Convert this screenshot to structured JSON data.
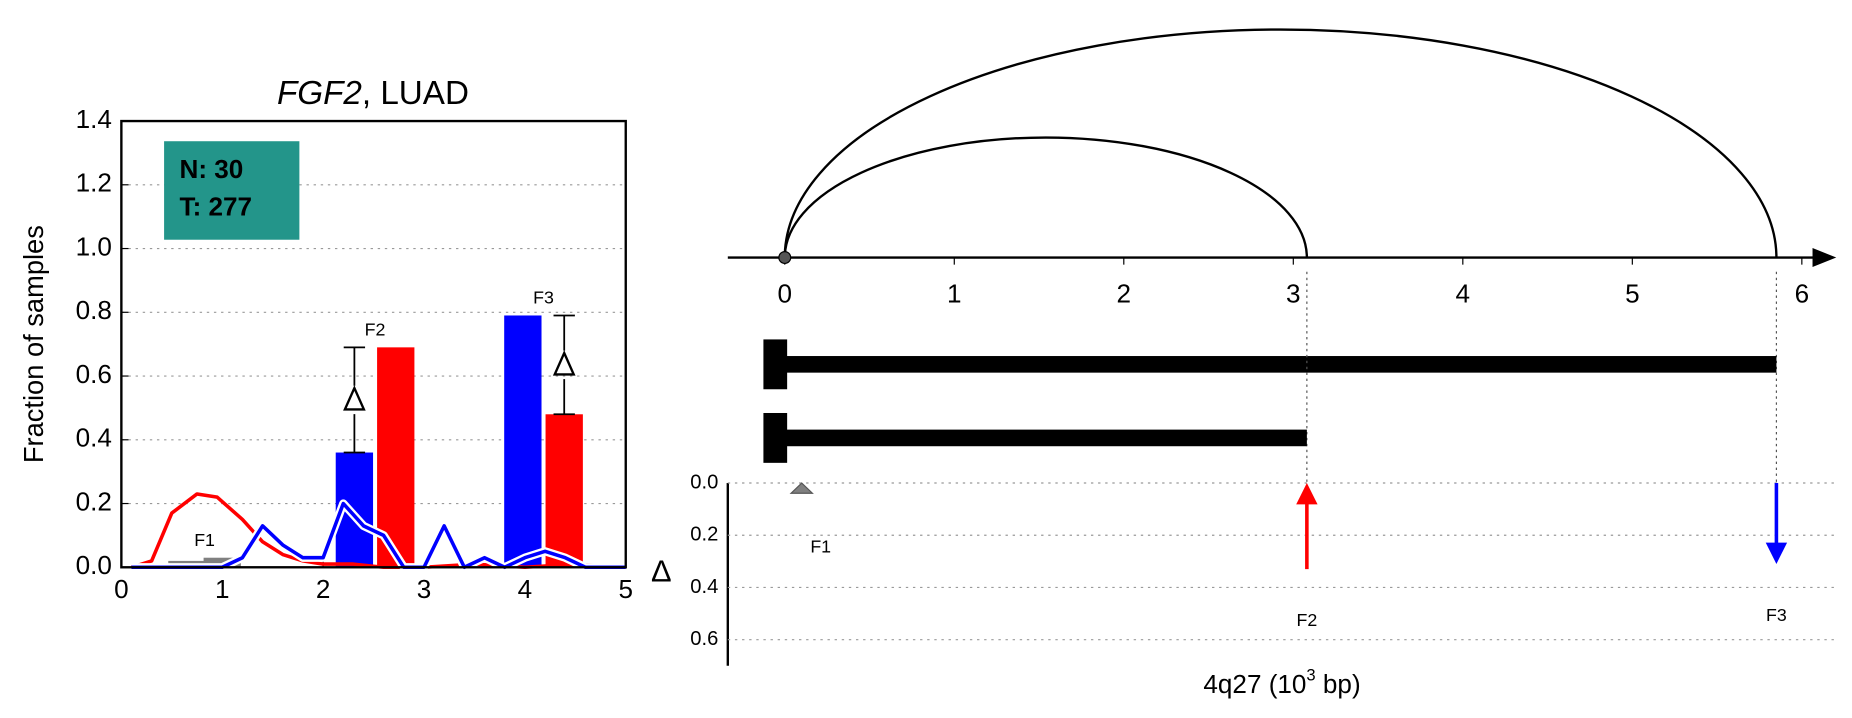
{
  "chart_data": [
    {
      "type": "bar",
      "title_italic": "FGF2",
      "title_rest": ", LUAD",
      "ylabel": "Fraction of samples",
      "xlim": [
        0,
        5
      ],
      "xticks": [
        0,
        1,
        2,
        3,
        4,
        5
      ],
      "ylim": [
        0,
        1.4
      ],
      "yticks": [
        {
          "value": 0,
          "label": "0.0"
        },
        {
          "value": 0.2,
          "label": "0.2"
        },
        {
          "value": 0.4,
          "label": "0.4"
        },
        {
          "value": 0.6,
          "label": "0.6"
        },
        {
          "value": 0.8,
          "label": "0.8"
        },
        {
          "value": 1.0,
          "label": "1.0"
        },
        {
          "value": 1.2,
          "label": "1.2"
        },
        {
          "value": 1.4,
          "label": "1.4"
        }
      ],
      "grid": true,
      "legend": [
        "N: 30",
        "T: 277"
      ],
      "legend_color": "#23958a",
      "bar_width": 0.37,
      "groups": [
        {
          "label": "F1",
          "x": [
            0.65,
            1.0
          ],
          "values": [
            0.02,
            0.03
          ],
          "colors": [
            "#808080",
            "#808080"
          ],
          "delta": false
        },
        {
          "label": "F2",
          "x": [
            2.31,
            2.72
          ],
          "values": [
            0.36,
            0.69
          ],
          "colors": [
            "#0000ff",
            "#ff0000"
          ],
          "delta": true
        },
        {
          "label": "F3",
          "x": [
            3.98,
            4.39
          ],
          "values": [
            0.79,
            0.48
          ],
          "colors": [
            "#0000ff",
            "#ff0000"
          ],
          "delta": true
        }
      ],
      "lines": [
        {
          "color": "#ff0000",
          "x": [
            0.1,
            0.3,
            0.5,
            0.75,
            0.95,
            1.2,
            1.4,
            1.6,
            1.8,
            2.0,
            2.3,
            2.6,
            3.0,
            3.5,
            4.0,
            4.5,
            5.0
          ],
          "values": [
            0,
            0.02,
            0.17,
            0.23,
            0.22,
            0.15,
            0.08,
            0.04,
            0.02,
            0.01,
            0.01,
            0,
            0,
            0.01,
            0,
            0.01,
            0
          ]
        },
        {
          "color": "#0000ff",
          "x": [
            0.1,
            1.0,
            1.2,
            1.4,
            1.6,
            1.8,
            2.0,
            2.2,
            2.4,
            2.6,
            2.8,
            3.0,
            3.2,
            3.4,
            3.6,
            3.8,
            4.0,
            4.2,
            4.4,
            4.6,
            5.0
          ],
          "values": [
            0,
            0,
            0.03,
            0.13,
            0.07,
            0.03,
            0.03,
            0.2,
            0.13,
            0.1,
            0,
            0,
            0.13,
            0,
            0.03,
            0,
            0.03,
            0.05,
            0.03,
            0,
            0
          ]
        }
      ]
    },
    {
      "type": "arc",
      "xlim": [
        0,
        6
      ],
      "xticks": [
        0,
        1,
        2,
        3,
        4,
        5,
        6
      ],
      "xlabel": "4q27 (10",
      "xlabel_superscript": "3",
      "xlabel_suffix": " bp)",
      "junctions": [
        {
          "start": 0,
          "end": 5.85
        },
        {
          "start": 0,
          "end": 3.08
        }
      ],
      "delta_label": "Δ",
      "delta_ylim": [
        0,
        0.7
      ],
      "delta_yticks": [
        {
          "value": 0,
          "label": "0.0"
        },
        {
          "value": 0.2,
          "label": "0.2"
        },
        {
          "value": 0.4,
          "label": "0.4"
        },
        {
          "value": 0.6,
          "label": "0.6"
        }
      ],
      "features": [
        {
          "name": "F1",
          "x": 0.1,
          "delta": 0.03,
          "color": "#808080",
          "direction": "marker"
        },
        {
          "name": "F2",
          "x": 3.08,
          "delta": 0.33,
          "color": "#ff0000",
          "direction": "up"
        },
        {
          "name": "F3",
          "x": 5.85,
          "delta": 0.31,
          "color": "#0000ff",
          "direction": "down"
        }
      ]
    }
  ]
}
